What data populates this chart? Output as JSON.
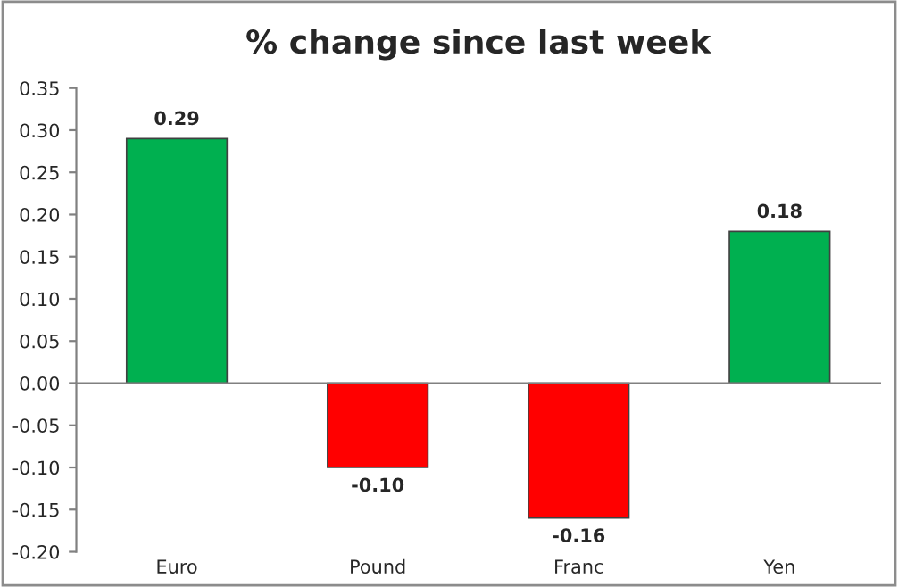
{
  "chart_data": {
    "type": "bar",
    "title": "% change since last week",
    "categories": [
      "Euro",
      "Pound",
      "Franc",
      "Yen"
    ],
    "values": [
      0.29,
      -0.1,
      -0.16,
      0.18
    ],
    "colors": [
      "#00b050",
      "#ff0000",
      "#ff0000",
      "#00b050"
    ],
    "value_labels": [
      "0.29",
      "-0.10",
      "-0.16",
      "0.18"
    ],
    "ylim": [
      -0.2,
      0.35
    ],
    "yticks": [
      {
        "value": -0.2,
        "label": "-0.20"
      },
      {
        "value": -0.15,
        "label": "-0.15"
      },
      {
        "value": -0.1,
        "label": "-0.10"
      },
      {
        "value": -0.05,
        "label": "-0.05"
      },
      {
        "value": 0,
        "label": "0.00"
      },
      {
        "value": 0.05,
        "label": "0.05"
      },
      {
        "value": 0.1,
        "label": "0.10"
      },
      {
        "value": 0.15,
        "label": "0.15"
      },
      {
        "value": 0.2,
        "label": "0.20"
      },
      {
        "value": 0.25,
        "label": "0.25"
      },
      {
        "value": 0.3,
        "label": "0.30"
      },
      {
        "value": 0.35,
        "label": "0.35"
      }
    ],
    "legend": false
  }
}
